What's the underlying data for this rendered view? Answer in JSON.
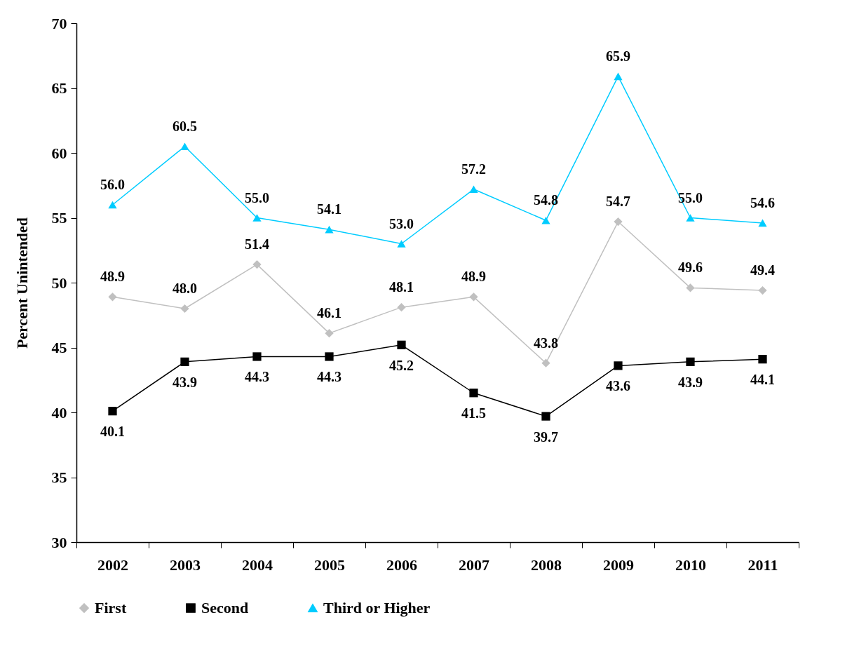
{
  "chart_data": {
    "type": "line",
    "ylabel": "Percent Unintended",
    "categories": [
      "2002",
      "2003",
      "2004",
      "2005",
      "2006",
      "2007",
      "2008",
      "2009",
      "2010",
      "2011"
    ],
    "series": [
      {
        "name": "First",
        "color": "#c0c0c0",
        "marker": "diamond",
        "values": [
          48.9,
          48.0,
          51.4,
          46.1,
          48.1,
          48.9,
          43.8,
          54.7,
          49.6,
          49.4
        ],
        "value_labels": [
          "48.9",
          "48.0",
          "51.4",
          "46.1",
          "48.1",
          "48.9",
          "43.8",
          "54.7",
          "49.6",
          "49.4"
        ]
      },
      {
        "name": "Second",
        "color": "#000000",
        "marker": "square",
        "values": [
          40.1,
          43.9,
          44.3,
          44.3,
          45.2,
          41.5,
          39.7,
          43.6,
          43.9,
          44.1
        ],
        "value_labels": [
          "40.1",
          "43.9",
          "44.3",
          "44.3",
          "45.2",
          "41.5",
          "39.7",
          "43.6",
          "43.9",
          "44.1"
        ]
      },
      {
        "name": "Third or Higher",
        "color": "#00ccff",
        "marker": "triangle",
        "values": [
          56.0,
          60.5,
          55.0,
          54.1,
          53.0,
          57.2,
          54.8,
          65.9,
          55.0,
          54.6
        ],
        "value_labels": [
          "56.0",
          "60.5",
          "55.0",
          "54.1",
          "53.0",
          "57.2",
          "54.8",
          "65.9",
          "55.0",
          "54.6"
        ]
      }
    ],
    "ylim": [
      30,
      70
    ],
    "yticks": [
      30,
      35,
      40,
      45,
      50,
      55,
      60,
      65,
      70
    ],
    "grid": false,
    "legend": "bottom",
    "line_style": "solid"
  }
}
